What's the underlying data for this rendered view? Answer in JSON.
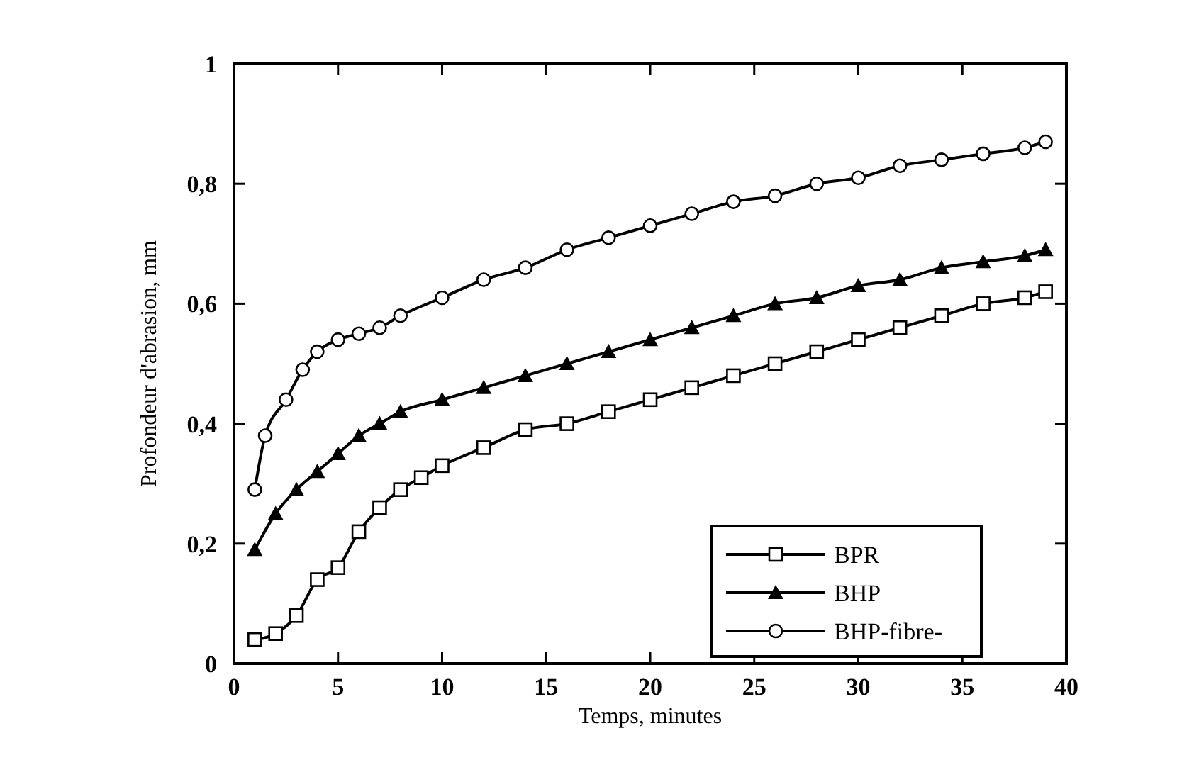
{
  "chart_data": {
    "type": "line",
    "xlabel": "Temps, minutes",
    "ylabel": "Profondeur d'abrasion, mm",
    "xlim": [
      0,
      40
    ],
    "ylim": [
      0,
      1
    ],
    "xticks": [
      0,
      5,
      10,
      15,
      20,
      25,
      30,
      35,
      40
    ],
    "yticks": [
      0,
      {
        "value": 0.2,
        "label": "0,2"
      },
      {
        "value": 0.4,
        "label": "0,4"
      },
      {
        "value": 0.6,
        "label": "0,6"
      },
      {
        "value": 0.8,
        "label": "0,8"
      },
      1
    ],
    "grid": false,
    "legend": "bottom right",
    "series": [
      {
        "name": "BPR",
        "color": "#000000",
        "marker": "square",
        "x": [
          1,
          2,
          3,
          4,
          5,
          6,
          7,
          8,
          9,
          10,
          12,
          14,
          16,
          18,
          20,
          22,
          24,
          26,
          28,
          30,
          32,
          34,
          36,
          38,
          39
        ],
        "values": [
          0.04,
          0.05,
          0.08,
          0.14,
          0.16,
          0.22,
          0.26,
          0.29,
          0.31,
          0.33,
          0.36,
          0.39,
          0.4,
          0.42,
          0.44,
          0.46,
          0.48,
          0.5,
          0.52,
          0.54,
          0.56,
          0.58,
          0.6,
          0.61,
          0.62
        ]
      },
      {
        "name": "BHP",
        "color": "#000000",
        "marker": "triangle",
        "x": [
          1,
          2,
          3,
          4,
          5,
          6,
          7,
          8,
          10,
          12,
          14,
          16,
          18,
          20,
          22,
          24,
          26,
          28,
          30,
          32,
          34,
          36,
          38,
          39
        ],
        "values": [
          0.19,
          0.25,
          0.29,
          0.32,
          0.35,
          0.38,
          0.4,
          0.42,
          0.44,
          0.46,
          0.48,
          0.5,
          0.52,
          0.54,
          0.56,
          0.58,
          0.6,
          0.61,
          0.63,
          0.64,
          0.66,
          0.67,
          0.68,
          0.69
        ]
      },
      {
        "name": "BHP-fibre-",
        "color": "#000000",
        "marker": "circle",
        "x": [
          1,
          1.5,
          2.5,
          3.3,
          4,
          5,
          6,
          7,
          8,
          10,
          12,
          14,
          16,
          18,
          20,
          22,
          24,
          26,
          28,
          30,
          32,
          34,
          36,
          38,
          39
        ],
        "values": [
          0.29,
          0.38,
          0.44,
          0.49,
          0.52,
          0.54,
          0.55,
          0.56,
          0.58,
          0.61,
          0.64,
          0.66,
          0.69,
          0.71,
          0.73,
          0.75,
          0.77,
          0.78,
          0.8,
          0.81,
          0.83,
          0.84,
          0.85,
          0.86,
          0.87
        ]
      }
    ]
  }
}
